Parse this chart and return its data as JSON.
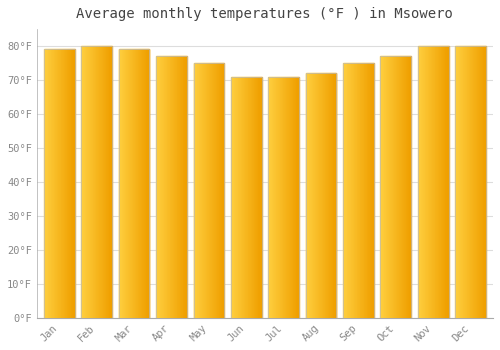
{
  "months": [
    "Jan",
    "Feb",
    "Mar",
    "Apr",
    "May",
    "Jun",
    "Jul",
    "Aug",
    "Sep",
    "Oct",
    "Nov",
    "Dec"
  ],
  "values": [
    79,
    80,
    79,
    77,
    75,
    71,
    71,
    72,
    75,
    77,
    80,
    80
  ],
  "bar_color_left": "#FFD040",
  "bar_color_right": "#F0A000",
  "bar_edge_color": "#BBBBBB",
  "background_color": "#FFFFFF",
  "plot_bg_color": "#FFFFFF",
  "title": "Average monthly temperatures (°F ) in Msowero",
  "title_fontsize": 10,
  "ylabel_ticks": [
    "0°F",
    "10°F",
    "20°F",
    "30°F",
    "40°F",
    "50°F",
    "60°F",
    "70°F",
    "80°F"
  ],
  "ytick_values": [
    0,
    10,
    20,
    30,
    40,
    50,
    60,
    70,
    80
  ],
  "ylim": [
    0,
    85
  ],
  "grid_color": "#dddddd",
  "tick_color": "#aaaaaa",
  "font_color": "#888888",
  "bar_width": 0.82
}
